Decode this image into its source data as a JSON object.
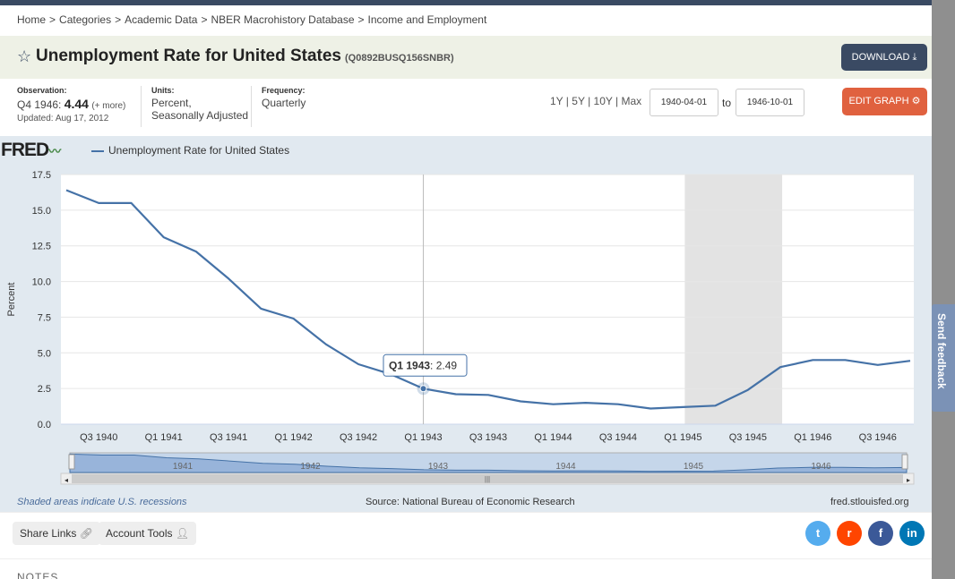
{
  "breadcrumb": [
    "Home",
    "Categories",
    "Academic Data",
    "NBER Macrohistory Database",
    "Income and Employment"
  ],
  "breadcrumb_sep": ">",
  "series": {
    "title": "Unemployment Rate for United States",
    "id": "(Q0892BUSQ156SNBR)"
  },
  "download_label": "DOWNLOAD",
  "observation": {
    "label": "Observation:",
    "period": "Q4 1946:",
    "value": "4.44",
    "more": "(+ more)",
    "updated": "Updated: Aug 17, 2012"
  },
  "units": {
    "label": "Units:",
    "line1": "Percent,",
    "line2": "Seasonally Adjusted"
  },
  "frequency": {
    "label": "Frequency:",
    "value": "Quarterly"
  },
  "range_links": [
    "1Y",
    "5Y",
    "10Y",
    "Max"
  ],
  "date_from": "1940-04-01",
  "date_to": "1946-10-01",
  "to_label": "to",
  "edit_graph_label": "EDIT GRAPH",
  "fred_logo": "FRED",
  "legend_label": "Unemployment Rate for United States",
  "tooltip": {
    "period": "Q1 1943",
    "sep": ":",
    "value": "2.49"
  },
  "footer": {
    "recession_note": "Shaded areas indicate U.S. recessions",
    "source": "Source: National Bureau of Economic Research",
    "site": "fred.stlouisfed.org"
  },
  "share_links_label": "Share Links",
  "account_tools_label": "Account Tools",
  "social_icons": [
    "twitter-icon",
    "reddit-icon",
    "facebook-icon",
    "linkedin-icon"
  ],
  "notes_label": "NOTES",
  "feedback_label": "Send feedback",
  "colors": {
    "line": "#4572a7",
    "recession_shade": "#e3e3e3",
    "navbar": "#3a4a63",
    "edit_button": "#e0613f",
    "twitter": "#55acee",
    "reddit": "#ff4500",
    "facebook": "#3b5998",
    "linkedin": "#0077b5"
  },
  "chart_data": {
    "type": "line",
    "ylabel": "Percent",
    "ylim": [
      0,
      17.5
    ],
    "yticks": [
      0.0,
      2.5,
      5.0,
      7.5,
      10.0,
      12.5,
      15.0,
      17.5
    ],
    "ytick_labels": [
      "0.0",
      "2.5",
      "5.0",
      "7.5",
      "10.0",
      "12.5",
      "15.0",
      "17.5"
    ],
    "xtick_labels": [
      "Q3 1940",
      "Q1 1941",
      "Q3 1941",
      "Q1 1942",
      "Q3 1942",
      "Q1 1943",
      "Q3 1943",
      "Q1 1944",
      "Q3 1944",
      "Q1 1945",
      "Q3 1945",
      "Q1 1946",
      "Q3 1946"
    ],
    "x": [
      "Q2 1940",
      "Q3 1940",
      "Q4 1940",
      "Q1 1941",
      "Q2 1941",
      "Q3 1941",
      "Q4 1941",
      "Q1 1942",
      "Q2 1942",
      "Q3 1942",
      "Q4 1942",
      "Q1 1943",
      "Q2 1943",
      "Q3 1943",
      "Q4 1943",
      "Q1 1944",
      "Q2 1944",
      "Q3 1944",
      "Q4 1944",
      "Q1 1945",
      "Q2 1945",
      "Q3 1945",
      "Q4 1945",
      "Q1 1946",
      "Q2 1946",
      "Q3 1946",
      "Q4 1946"
    ],
    "series": [
      {
        "name": "Unemployment Rate for United States",
        "values": [
          16.4,
          15.5,
          15.5,
          13.1,
          12.1,
          10.2,
          8.1,
          7.4,
          5.6,
          4.2,
          3.5,
          2.49,
          2.1,
          2.05,
          1.6,
          1.4,
          1.5,
          1.4,
          1.1,
          1.2,
          1.3,
          2.4,
          4.0,
          4.5,
          4.5,
          4.15,
          4.44
        ]
      }
    ],
    "recessions": [
      [
        "Q1 1945",
        "Q4 1945"
      ]
    ],
    "grid": true,
    "navigator_labels": [
      "1941",
      "1942",
      "1943",
      "1944",
      "1945",
      "1946"
    ]
  }
}
